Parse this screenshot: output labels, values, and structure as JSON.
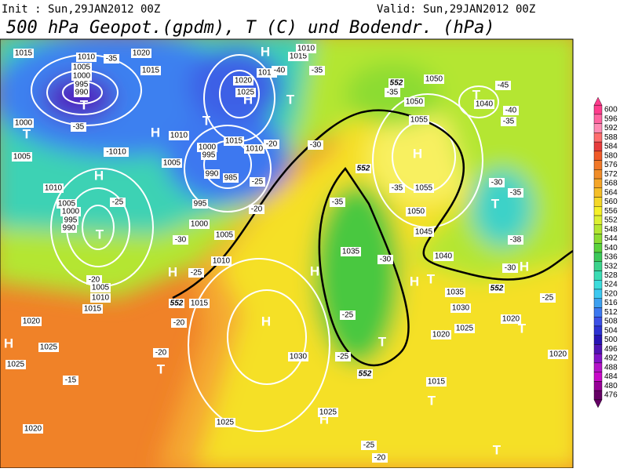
{
  "header": {
    "init": "Init : Sun,29JAN2012 00Z",
    "valid": "Valid: Sun,29JAN2012 00Z",
    "title": "500 hPa Geopot.(gpdm), T (C) und Bodendr. (hPa)"
  },
  "colorbar": {
    "levels": [
      600,
      596,
      592,
      588,
      584,
      580,
      576,
      572,
      568,
      564,
      560,
      556,
      552,
      548,
      544,
      540,
      536,
      532,
      528,
      524,
      520,
      516,
      512,
      508,
      504,
      500,
      496,
      492,
      488,
      484,
      480,
      476
    ],
    "colors": [
      "#ff3c8c",
      "#ff64a0",
      "#ff8cb4",
      "#ff6e6e",
      "#e63c3c",
      "#f05a28",
      "#f07828",
      "#f08c28",
      "#f5a528",
      "#f5be28",
      "#f5d728",
      "#f5f028",
      "#dcf032",
      "#b4e632",
      "#8cdc32",
      "#5ad23c",
      "#3cc85a",
      "#3cd28c",
      "#3cdcb4",
      "#3cdcdc",
      "#3cc8f0",
      "#3ca0f0",
      "#3c78f0",
      "#3c50e6",
      "#2d32d2",
      "#2814b4",
      "#5014b4",
      "#8214c8",
      "#b414c8",
      "#c80ac8",
      "#960096",
      "#640064"
    ]
  },
  "map": {
    "labels": [
      "1015",
      "1020",
      "1010",
      "-35",
      "1005",
      "1000",
      "995",
      "990",
      "1015",
      "H",
      "1015",
      "1010",
      "1020",
      "1025",
      "1015",
      "T",
      "H",
      "-35",
      "-40",
      "552",
      "1050",
      "-35",
      "1050",
      "T",
      "1040",
      "-45",
      "-40",
      "-35",
      "1000",
      "T",
      "-35",
      "T",
      "H",
      "T",
      "1010",
      "1015",
      "1010",
      "-20",
      "-30",
      "H",
      "1055",
      "1005",
      "-1010",
      "1000",
      "995",
      "1005",
      "H",
      "990",
      "985",
      "-25",
      "552",
      "-35",
      "1055",
      "-30",
      "-35",
      "1010",
      "1005",
      "1000",
      "995",
      "990",
      "T",
      "-25",
      "995",
      "1000",
      "-20",
      "1005",
      "1010",
      "-30",
      "-35",
      "1050",
      "1045",
      "1035",
      "-30",
      "1040",
      "-38",
      "T",
      "H",
      "-30",
      "H",
      "-25",
      "-20",
      "1005",
      "1010",
      "1015",
      "552",
      "1015",
      "1020",
      "-20",
      "H",
      "H",
      "H",
      "T",
      "1035",
      "552",
      "-25",
      "1030",
      "1025",
      "1020",
      "-25",
      "1020",
      "T",
      "H",
      "1025",
      "-20",
      "T",
      "1025",
      "T",
      "-15",
      "1030",
      "-25",
      "552",
      "1020",
      "1015",
      "T",
      "1025",
      "H",
      "1020",
      "1025",
      "-25",
      "-20",
      "T"
    ]
  }
}
